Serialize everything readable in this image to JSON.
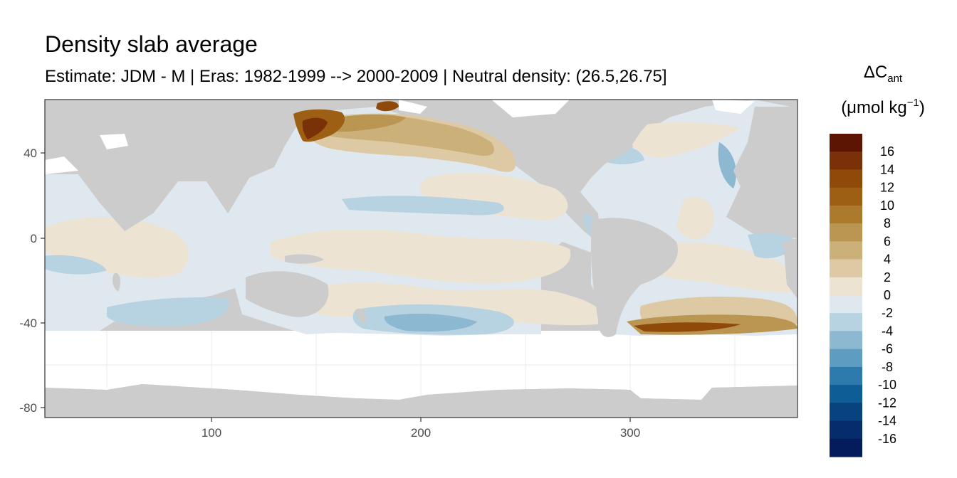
{
  "title": "Density slab average",
  "subtitle": "Estimate: JDM - M | Eras: 1982-1999 --> 2000-2009 | Neutral density: (26.5,26.75]",
  "legend": {
    "title_prefix": "ΔC",
    "title_subscript": "ant",
    "unit_open": "(μmol kg",
    "unit_superscript": "−1",
    "unit_close": ")",
    "breaks": [
      "16",
      "14",
      "12",
      "10",
      "8",
      "6",
      "4",
      "2",
      "0",
      "-2",
      "-4",
      "-6",
      "-8",
      "-10",
      "-12",
      "-14",
      "-16"
    ],
    "colors": [
      "#5c1503",
      "#7a3107",
      "#8f4a0a",
      "#9c5f13",
      "#ab7a2d",
      "#bb9552",
      "#ccb07a",
      "#ddcaa4",
      "#ece3d3",
      "#dfe8ee",
      "#b7d2e1",
      "#8db8d2",
      "#5f9cc2",
      "#2f7aad",
      "#0f5d96",
      "#08427f",
      "#062c6b",
      "#041c5b"
    ]
  },
  "land_color": "#cccccc",
  "chart_data": {
    "type": "heatmap",
    "title": "Density slab average",
    "subtitle": "Estimate: JDM - M | Eras: 1982-1999 --> 2000-2009 | Neutral density: (26.5,26.75]",
    "xlabel": "",
    "ylabel": "",
    "x_ticks": [
      "100",
      "200",
      "300"
    ],
    "y_ticks": [
      "40",
      "0",
      "-40",
      "-80"
    ],
    "xlim": [
      20,
      380
    ],
    "ylim": [
      -85,
      65
    ],
    "grid": true,
    "legend_position": "right",
    "color_scale_label": "ΔCant (μmol kg−1)",
    "value_range": [
      -16,
      16
    ]
  }
}
